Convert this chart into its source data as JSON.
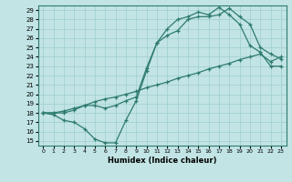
{
  "xlabel": "Humidex (Indice chaleur)",
  "bg_color": "#c2e4e4",
  "grid_color": "#9ecece",
  "line_color": "#2e7b6e",
  "xlim": [
    -0.5,
    23.5
  ],
  "ylim": [
    14.5,
    29.5
  ],
  "xticks": [
    0,
    1,
    2,
    3,
    4,
    5,
    6,
    7,
    8,
    9,
    10,
    11,
    12,
    13,
    14,
    15,
    16,
    17,
    18,
    19,
    20,
    21,
    22,
    23
  ],
  "yticks": [
    15,
    16,
    17,
    18,
    19,
    20,
    21,
    22,
    23,
    24,
    25,
    26,
    27,
    28,
    29
  ],
  "line1_x": [
    0,
    1,
    2,
    3,
    4,
    5,
    6,
    7,
    8,
    9,
    10,
    11,
    12,
    13,
    14,
    15,
    16,
    17,
    18,
    19,
    20,
    21,
    22,
    23
  ],
  "line1_y": [
    18.0,
    18.0,
    18.2,
    18.5,
    18.8,
    19.2,
    19.5,
    19.7,
    20.0,
    20.3,
    20.7,
    21.0,
    21.3,
    21.7,
    22.0,
    22.3,
    22.7,
    23.0,
    23.3,
    23.7,
    24.0,
    24.3,
    23.5,
    24.0
  ],
  "line2_x": [
    0,
    1,
    2,
    3,
    4,
    5,
    6,
    7,
    8,
    9,
    10,
    11,
    12,
    13,
    14,
    15,
    16,
    17,
    18,
    19,
    20,
    21,
    22,
    23
  ],
  "line2_y": [
    18.0,
    17.8,
    17.2,
    17.0,
    16.3,
    15.2,
    14.8,
    14.8,
    17.2,
    19.3,
    22.5,
    25.5,
    27.0,
    28.0,
    28.3,
    28.8,
    28.5,
    29.3,
    28.5,
    27.5,
    25.2,
    24.5,
    23.0,
    23.0
  ],
  "line3_x": [
    0,
    1,
    2,
    3,
    4,
    5,
    6,
    7,
    8,
    9,
    10,
    11,
    12,
    13,
    14,
    15,
    16,
    17,
    18,
    19,
    20,
    21,
    22,
    23
  ],
  "line3_y": [
    18.0,
    18.0,
    18.0,
    18.3,
    18.8,
    18.8,
    18.5,
    18.8,
    19.3,
    19.7,
    22.8,
    25.5,
    26.3,
    26.8,
    28.0,
    28.3,
    28.3,
    28.5,
    29.2,
    28.3,
    27.5,
    25.0,
    24.3,
    23.8
  ]
}
